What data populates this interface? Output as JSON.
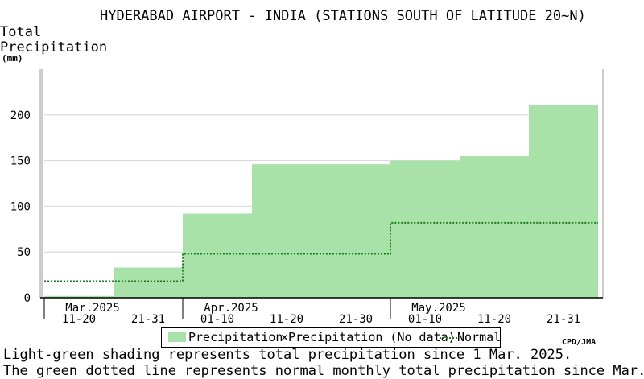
{
  "title": "HYDERABAD AIRPORT - INDIA (STATIONS SOUTH OF LATITUDE 20~N)",
  "ylabel_line1": "Total",
  "ylabel_line2": "Precipitation",
  "yunit": "(mm)",
  "credit": "CPD/JMA",
  "notes": [
    "Light-green shading represents total precipitation since 1 Mar. 2025.",
    "The green dotted line represents normal monthly total precipitation since Mar."
  ],
  "legend": {
    "precip": "Precipitation",
    "nodata_marker": "×",
    "nodata": "Precipitation (No data)",
    "normal": "Normal"
  },
  "colors": {
    "fill": "#a9e2a9",
    "normal_line": "#1a7a1a",
    "grid": "#d4d4d4"
  },
  "chart_data": {
    "type": "area",
    "ylim": [
      0,
      250
    ],
    "yticks": [
      0,
      50,
      100,
      150,
      200
    ],
    "months": [
      "Mar.2025",
      "Apr.2025",
      "May.2025"
    ],
    "periods": [
      "11-20",
      "21-31",
      "01-10",
      "11-20",
      "21-30",
      "01-10",
      "11-20",
      "21-31"
    ],
    "precipitation": [
      2,
      33,
      92,
      146,
      146,
      150,
      155,
      211
    ],
    "normal": [
      18,
      18,
      48,
      48,
      48,
      82,
      82,
      82
    ],
    "grid": true,
    "legend_position": "bottom"
  }
}
